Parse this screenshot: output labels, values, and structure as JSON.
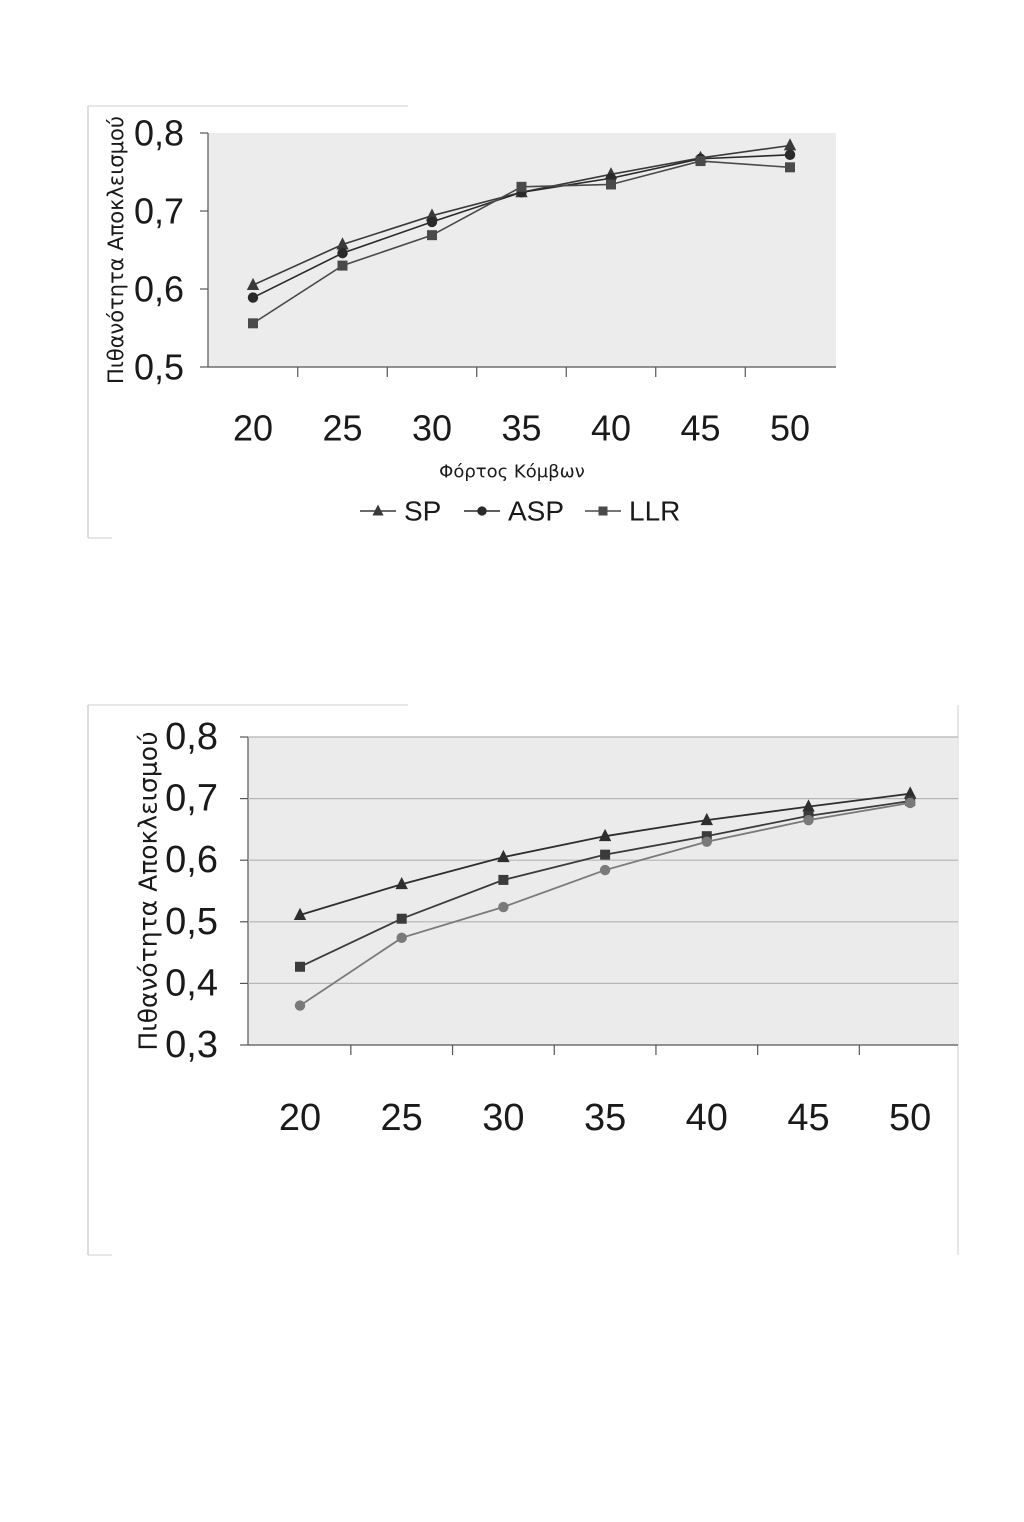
{
  "chart_data": [
    {
      "type": "line",
      "title": "",
      "xlabel": "Φόρτος Κόμβων",
      "ylabel": "Πιθανότητα Αποκλεισμού",
      "categories": [
        "20",
        "25",
        "30",
        "35",
        "40",
        "45",
        "50"
      ],
      "y_ticks": [
        "0,5",
        "0,6",
        "0,7",
        "0,8"
      ],
      "ylim": [
        0.5,
        0.8
      ],
      "grid": false,
      "legend_position": "bottom",
      "series": [
        {
          "name": "SP",
          "marker": "triangle",
          "values": [
            0.605,
            0.657,
            0.694,
            0.724,
            0.747,
            0.768,
            0.784
          ]
        },
        {
          "name": "ASP",
          "marker": "circle",
          "values": [
            0.589,
            0.646,
            0.686,
            0.724,
            0.742,
            0.767,
            0.772
          ]
        },
        {
          "name": "LLR",
          "marker": "square",
          "values": [
            0.556,
            0.63,
            0.669,
            0.731,
            0.734,
            0.764,
            0.756
          ]
        }
      ]
    },
    {
      "type": "line",
      "title": "",
      "xlabel": "",
      "ylabel": "Πιθανότητα Αποκλεισμού",
      "categories": [
        "20",
        "25",
        "30",
        "35",
        "40",
        "45",
        "50"
      ],
      "y_ticks": [
        "0,3",
        "0,4",
        "0,5",
        "0,6",
        "0,7",
        "0,8"
      ],
      "ylim": [
        0.3,
        0.8
      ],
      "grid": true,
      "series": [
        {
          "marker": "triangle",
          "values": [
            0.511,
            0.561,
            0.605,
            0.639,
            0.665,
            0.687,
            0.708
          ]
        },
        {
          "marker": "square",
          "values": [
            0.427,
            0.505,
            0.568,
            0.609,
            0.639,
            0.672,
            0.696
          ]
        },
        {
          "marker": "circle",
          "values": [
            0.364,
            0.474,
            0.524,
            0.584,
            0.63,
            0.665,
            0.693
          ]
        }
      ]
    }
  ]
}
